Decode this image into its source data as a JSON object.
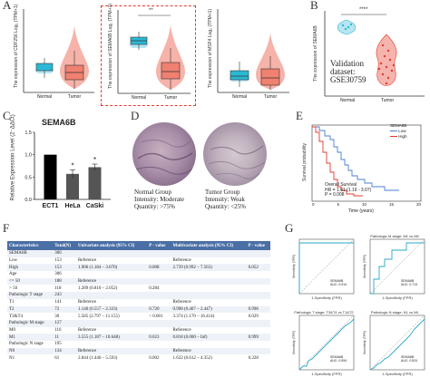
{
  "panel_labels": {
    "A": "A",
    "B": "B",
    "C": "C",
    "D": "D",
    "E": "E",
    "F": "F",
    "G": "G"
  },
  "panel_a": {
    "plots": [
      {
        "ylabel": "The expression of CDF256 Log₂ (TPM+1)",
        "sig": ""
      },
      {
        "ylabel": "The expression of SEMA6B Log₂ (TPM+1)",
        "sig": "**"
      },
      {
        "ylabel": "The expression of MSF4 Log₂ (TPM+1)",
        "sig": ""
      }
    ],
    "x_normal": "Normal",
    "x_tumor": "Tumor",
    "normal_color": "#2bb8d6",
    "tumor_color": "#f08070",
    "highlight_color": "#e03a2e"
  },
  "panel_b": {
    "ylabel": "The expression of SEMA6B",
    "sig": "****",
    "text_line1": "Validation",
    "text_line2": "dataset:",
    "text_line3": "GSE30759",
    "x_normal": "Normal",
    "x_tumor": "Tumor"
  },
  "panel_c": {
    "title": "SEMA6B",
    "ylabel": "Relative Expression Level (2⁻ΔΔCt)",
    "chart_data": {
      "type": "bar",
      "categories": [
        "ECT1",
        "HeLa",
        "CaSki"
      ],
      "values": [
        1.0,
        0.57,
        0.72
      ],
      "errors": [
        0.0,
        0.09,
        0.07
      ],
      "significance": [
        "",
        "*",
        "*"
      ],
      "title": "SEMA6B",
      "ylabel": "Relative Expression Level (2⁻ΔΔCt)",
      "ylim": [
        0,
        1.5
      ],
      "yticks": [
        "0.0",
        "0.5",
        "1.0",
        "1.5"
      ],
      "bar_color": "#222222"
    }
  },
  "panel_d": {
    "normal_caption": [
      "Normal Group",
      "Intensity: Moderate",
      "Quantity: >75%"
    ],
    "tumor_caption": [
      "Tumor Group",
      "Intensity: Weak",
      "Quantity: <25%"
    ]
  },
  "panel_e": {
    "ylabel": "Survival probability",
    "xlabel": "Time (years)",
    "legend_title": "SEMA6B",
    "legend_low": "Low",
    "legend_high": "High",
    "annotation_1": "Overall Survival",
    "annotation_2": "HR = 1.91 (1.19 - 3.07)",
    "annotation_3": "P = 0.008",
    "xticks": [
      "0",
      "5",
      "10",
      "15",
      "20"
    ],
    "low_color": "#4a7fd0",
    "high_color": "#e23b30"
  },
  "panel_f": {
    "headers": [
      "Characteristics",
      "Total(N)",
      "Univariate analysis (95% CI)",
      "P - value",
      "Multivariate analysis (95% CI)",
      "P - value"
    ],
    "rows": [
      [
        "SEMA6B",
        "306",
        "",
        "",
        "",
        ""
      ],
      [
        "Low",
        "153",
        "Reference",
        "",
        "Reference",
        ""
      ],
      [
        "High",
        "153",
        "1.906 (1.184 – 3.070)",
        "0.008",
        "2.739 (0.992 – 7.563)",
        "0.052"
      ],
      [
        "Age",
        "306",
        "",
        "",
        "",
        ""
      ],
      [
        "<= 50",
        "188",
        "Reference",
        "",
        "",
        ""
      ],
      [
        "> 50",
        "118",
        "1.289 (0.810 – 2.052)",
        "0.284",
        "",
        ""
      ],
      [
        "Pathologic T stage",
        "243",
        "",
        "",
        "",
        ""
      ],
      [
        "T1",
        "141",
        "Reference",
        "",
        "Reference",
        ""
      ],
      [
        "T2",
        "72",
        "1.140 (0.557 – 2.333)",
        "0.720",
        "0.998 (0.407 – 2.447)",
        "0.996"
      ],
      [
        "T3&T4",
        "30",
        "5.585 (2.797 – 11.155)",
        "< 0.001",
        "3.374 (1.170 – 16.414)",
        "0.029"
      ],
      [
        "Pathologic M stage",
        "127",
        "",
        "",
        "",
        ""
      ],
      [
        "M0",
        "116",
        "Reference",
        "",
        "Reference",
        ""
      ],
      [
        "M1",
        "11",
        "3.555 (1.187 – 10.648)",
        "0.023",
        "0.818 (0.000 – Inf)",
        "0.999"
      ],
      [
        "Pathologic N stage",
        "195",
        "",
        "",
        "",
        ""
      ],
      [
        "N0",
        "134",
        "Reference",
        "",
        "Reference",
        ""
      ],
      [
        "N1",
        "61",
        "2.844 (1.446 – 5.593)",
        "0.002",
        "1.632 (0.612 – 4.352)",
        "0.328"
      ]
    ]
  },
  "panel_g": {
    "plots": [
      {
        "title": "",
        "legend": "SEMA6B",
        "auc": "AUC: 0.914"
      },
      {
        "title": "Pathologic M stage: M1 vs M0",
        "legend": "SEMA6B",
        "auc": "AUC: 0.713"
      },
      {
        "title": "Pathologic T stage: T3&T4 vs T1&T2",
        "legend": "SEMA6B",
        "auc": "AUC: 0.594"
      },
      {
        "title": "Pathologic N stage: N1 vs N0",
        "legend": "SEMA6B",
        "auc": "AUC: 0.524"
      }
    ],
    "xlabel": "1-Specificity (FPR)",
    "ylabel": "Sensitivity (TPR)",
    "curve_color": "#2ba7c9"
  }
}
